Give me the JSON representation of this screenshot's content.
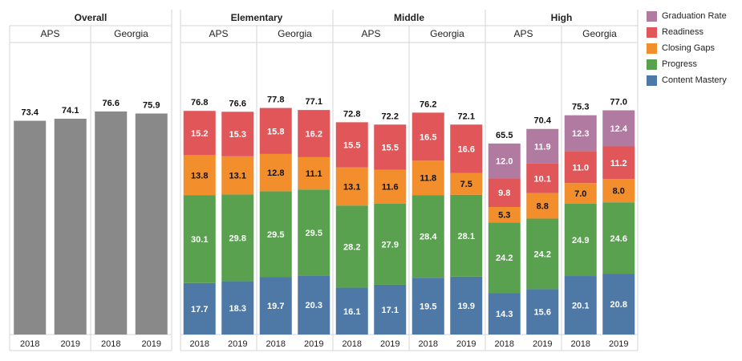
{
  "chart_data": {
    "type": "bar",
    "stacked": true,
    "panels": [
      {
        "title": "Overall",
        "groups": [
          {
            "label": "APS",
            "years": [
              "2018",
              "2019"
            ]
          },
          {
            "label": "Georgia",
            "years": [
              "2018",
              "2019"
            ]
          }
        ]
      },
      {
        "title": "Elementary",
        "groups": [
          {
            "label": "APS",
            "years": [
              "2018",
              "2019"
            ]
          },
          {
            "label": "Georgia",
            "years": [
              "2018",
              "2019"
            ]
          }
        ]
      },
      {
        "title": "Middle",
        "groups": [
          {
            "label": "APS",
            "years": [
              "2018",
              "2019"
            ]
          },
          {
            "label": "Georgia",
            "years": [
              "2018",
              "2019"
            ]
          }
        ]
      },
      {
        "title": "High",
        "groups": [
          {
            "label": "APS",
            "years": [
              "2018",
              "2019"
            ]
          },
          {
            "label": "Georgia",
            "years": [
              "2018",
              "2019"
            ]
          }
        ]
      }
    ],
    "series": [
      {
        "name": "Content Mastery",
        "color": "#4e79a7"
      },
      {
        "name": "Progress",
        "color": "#59a14f"
      },
      {
        "name": "Closing Gaps",
        "color": "#f28e2b"
      },
      {
        "name": "Readiness",
        "color": "#e15759"
      },
      {
        "name": "Graduation Rate",
        "color": "#b07aa1"
      }
    ],
    "overall_color": "#898989",
    "legend_order": [
      "Graduation Rate",
      "Readiness",
      "Closing Gaps",
      "Progress",
      "Content Mastery"
    ],
    "legend_position": "right",
    "ylim": [
      0,
      100
    ],
    "bars": [
      {
        "panel": 0,
        "group": 0,
        "year": "2018",
        "total": "73.4",
        "segments": []
      },
      {
        "panel": 0,
        "group": 0,
        "year": "2019",
        "total": "74.1",
        "segments": []
      },
      {
        "panel": 0,
        "group": 1,
        "year": "2018",
        "total": "76.6",
        "segments": []
      },
      {
        "panel": 0,
        "group": 1,
        "year": "2019",
        "total": "75.9",
        "segments": []
      },
      {
        "panel": 1,
        "group": 0,
        "year": "2018",
        "total": "76.8",
        "segments": [
          17.7,
          30.1,
          13.8,
          15.2
        ]
      },
      {
        "panel": 1,
        "group": 0,
        "year": "2019",
        "total": "76.6",
        "segments": [
          18.3,
          29.8,
          13.1,
          15.3
        ]
      },
      {
        "panel": 1,
        "group": 1,
        "year": "2018",
        "total": "77.8",
        "segments": [
          19.7,
          29.5,
          12.8,
          15.8
        ]
      },
      {
        "panel": 1,
        "group": 1,
        "year": "2019",
        "total": "77.1",
        "segments": [
          20.3,
          29.5,
          11.1,
          16.2
        ]
      },
      {
        "panel": 2,
        "group": 0,
        "year": "2018",
        "total": "72.8",
        "segments": [
          16.1,
          28.2,
          13.1,
          15.5
        ]
      },
      {
        "panel": 2,
        "group": 0,
        "year": "2019",
        "total": "72.2",
        "segments": [
          17.1,
          27.9,
          11.6,
          15.5
        ]
      },
      {
        "panel": 2,
        "group": 1,
        "year": "2018",
        "total": "76.2",
        "segments": [
          19.5,
          28.4,
          11.8,
          16.5
        ]
      },
      {
        "panel": 2,
        "group": 1,
        "year": "2019",
        "total": "72.1",
        "segments": [
          19.9,
          28.1,
          7.5,
          16.6
        ]
      },
      {
        "panel": 3,
        "group": 0,
        "year": "2018",
        "total": "65.5",
        "segments": [
          14.3,
          24.2,
          5.3,
          9.8,
          12.0
        ]
      },
      {
        "panel": 3,
        "group": 0,
        "year": "2019",
        "total": "70.4",
        "segments": [
          15.6,
          24.2,
          8.8,
          10.1,
          11.9
        ]
      },
      {
        "panel": 3,
        "group": 1,
        "year": "2018",
        "total": "75.3",
        "segments": [
          20.1,
          24.9,
          7.0,
          11.0,
          12.3
        ]
      },
      {
        "panel": 3,
        "group": 1,
        "year": "2019",
        "total": "77.0",
        "segments": [
          20.8,
          24.6,
          8.0,
          11.2,
          12.4
        ]
      }
    ]
  }
}
